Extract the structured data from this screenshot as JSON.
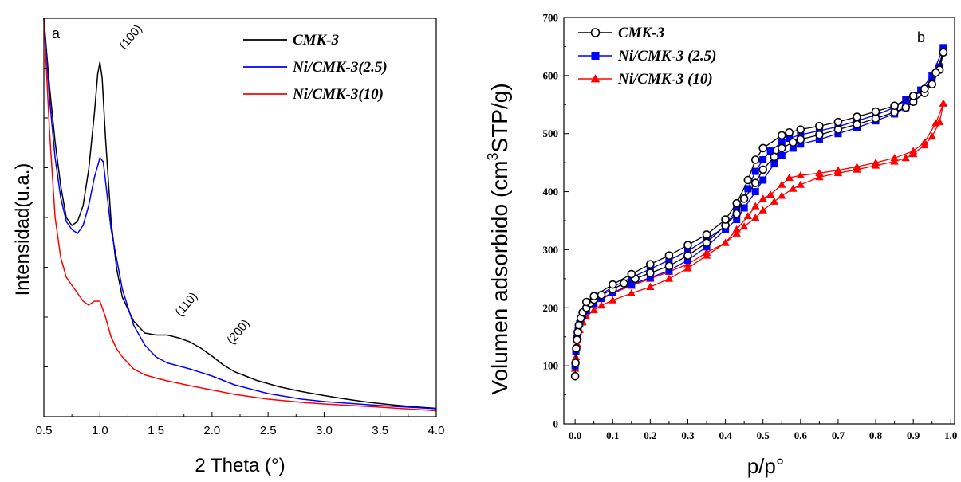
{
  "chart_data": [
    {
      "type": "line",
      "panel_label": "a",
      "xlabel": "2 Theta (°)",
      "ylabel": "Intensidad(u.a.)",
      "xlim": [
        0.5,
        4.0
      ],
      "ylim": [
        0,
        100
      ],
      "x_ticks": [
        "0.5",
        "1.0",
        "1.5",
        "2.0",
        "2.5",
        "3.0",
        "3.5",
        "4.0"
      ],
      "y_tick_labels_shown": false,
      "legend_position": "top-right",
      "annotations": [
        {
          "text": "(100)",
          "x": 1.22,
          "y": 92
        },
        {
          "text": "(110)",
          "x": 1.72,
          "y": 25
        },
        {
          "text": "(200)",
          "x": 2.18,
          "y": 18
        }
      ],
      "series": [
        {
          "name": "CMK-3",
          "color": "#000000",
          "x": [
            0.5,
            0.55,
            0.6,
            0.65,
            0.7,
            0.75,
            0.8,
            0.85,
            0.9,
            0.95,
            0.98,
            1.0,
            1.02,
            1.05,
            1.1,
            1.15,
            1.2,
            1.3,
            1.4,
            1.5,
            1.6,
            1.7,
            1.8,
            1.9,
            2.0,
            2.1,
            2.2,
            2.4,
            2.6,
            2.8,
            3.0,
            3.2,
            3.4,
            3.6,
            3.8,
            4.0
          ],
          "y": [
            100,
            83,
            69,
            58,
            50,
            48,
            49,
            53,
            62,
            76,
            86,
            89,
            85,
            70,
            49,
            37,
            30,
            24,
            21,
            20.5,
            20.5,
            19.8,
            18.8,
            17.2,
            15.2,
            13,
            11.3,
            9.1,
            7.5,
            6.3,
            5.3,
            4.4,
            3.6,
            3.0,
            2.5,
            2.1
          ]
        },
        {
          "name": "Ni/CMK-3(2.5)",
          "color": "#0000ff",
          "x": [
            0.5,
            0.55,
            0.6,
            0.65,
            0.7,
            0.75,
            0.8,
            0.85,
            0.9,
            0.95,
            1.0,
            1.03,
            1.1,
            1.2,
            1.3,
            1.4,
            1.5,
            1.6,
            1.8,
            2.0,
            2.2,
            2.5,
            2.8,
            3.0,
            3.5,
            4.0
          ],
          "y": [
            100,
            80,
            65,
            55,
            49,
            47,
            46,
            48,
            53,
            60,
            65,
            64,
            47,
            32,
            23,
            18,
            15,
            13.5,
            12,
            10.2,
            8,
            5.8,
            4.4,
            3.8,
            2.8,
            2.0
          ]
        },
        {
          "name": "Ni/CMK-3(10)",
          "color": "#ff0000",
          "x": [
            0.5,
            0.55,
            0.6,
            0.65,
            0.7,
            0.75,
            0.8,
            0.85,
            0.9,
            0.95,
            1.0,
            1.05,
            1.1,
            1.15,
            1.2,
            1.3,
            1.4,
            1.5,
            1.6,
            1.8,
            2.0,
            2.2,
            2.5,
            2.8,
            3.0,
            3.5,
            4.0
          ],
          "y": [
            100,
            72,
            50,
            40,
            35,
            33,
            31,
            29,
            28,
            29,
            29,
            25,
            20,
            17,
            15,
            12,
            10.5,
            9.7,
            9,
            7.8,
            6.7,
            5.6,
            4.4,
            3.6,
            3.2,
            2.4,
            1.5
          ]
        }
      ]
    },
    {
      "type": "scatter",
      "panel_label": "b",
      "xlabel": "p/p°",
      "ylabel": "Volumen adsorbido (cm³STP/g)",
      "ylabel_base": "Volumen adsorbido (cm",
      "ylabel_sup": "3",
      "ylabel_tail": "STP/g)",
      "xlim": [
        -0.03,
        1.01
      ],
      "ylim": [
        0,
        700
      ],
      "x_ticks": [
        "0.0",
        "0.1",
        "0.2",
        "0.3",
        "0.4",
        "0.5",
        "0.6",
        "0.7",
        "0.8",
        "0.9",
        "1.0"
      ],
      "y_ticks": [
        "0",
        "100",
        "200",
        "300",
        "400",
        "500",
        "600",
        "700"
      ],
      "legend_position": "top-left",
      "series": [
        {
          "name": "CMK-3",
          "color": "#000000",
          "marker": "open-circle",
          "adsorption": [
            [
              0.0,
              82
            ],
            [
              0.001,
              105
            ],
            [
              0.003,
              130
            ],
            [
              0.005,
              145
            ],
            [
              0.007,
              158
            ],
            [
              0.01,
              170
            ],
            [
              0.015,
              182
            ],
            [
              0.02,
              192
            ],
            [
              0.03,
              200
            ],
            [
              0.04,
              208
            ],
            [
              0.05,
              214
            ],
            [
              0.07,
              222
            ],
            [
              0.1,
              232
            ],
            [
              0.13,
              242
            ],
            [
              0.16,
              250
            ],
            [
              0.2,
              260
            ],
            [
              0.25,
              272
            ],
            [
              0.3,
              290
            ],
            [
              0.35,
              312
            ],
            [
              0.4,
              342
            ],
            [
              0.43,
              362
            ],
            [
              0.45,
              388
            ],
            [
              0.48,
              415
            ],
            [
              0.5,
              438
            ],
            [
              0.53,
              460
            ],
            [
              0.55,
              475
            ],
            [
              0.58,
              485
            ],
            [
              0.6,
              490
            ],
            [
              0.65,
              498
            ],
            [
              0.7,
              507
            ],
            [
              0.75,
              516
            ],
            [
              0.8,
              526
            ],
            [
              0.85,
              537
            ],
            [
              0.88,
              545
            ],
            [
              0.9,
              555
            ],
            [
              0.93,
              570
            ],
            [
              0.95,
              585
            ],
            [
              0.97,
              610
            ],
            [
              0.98,
              640
            ]
          ],
          "desorption": [
            [
              0.98,
              640
            ],
            [
              0.96,
              605
            ],
            [
              0.93,
              577
            ],
            [
              0.9,
              565
            ],
            [
              0.85,
              548
            ],
            [
              0.8,
              538
            ],
            [
              0.75,
              529
            ],
            [
              0.7,
              520
            ],
            [
              0.65,
              513
            ],
            [
              0.6,
              507
            ],
            [
              0.57,
              502
            ],
            [
              0.55,
              497
            ],
            [
              0.5,
              475
            ],
            [
              0.48,
              455
            ],
            [
              0.46,
              420
            ],
            [
              0.43,
              380
            ],
            [
              0.4,
              352
            ],
            [
              0.35,
              326
            ],
            [
              0.3,
              308
            ],
            [
              0.25,
              290
            ],
            [
              0.2,
              275
            ],
            [
              0.15,
              258
            ],
            [
              0.1,
              240
            ],
            [
              0.05,
              220
            ],
            [
              0.03,
              210
            ]
          ]
        },
        {
          "name": "Ni/CMK-3 (2.5)",
          "color": "#0000ff",
          "marker": "filled-square",
          "adsorption": [
            [
              0.0,
              100
            ],
            [
              0.002,
              125
            ],
            [
              0.005,
              148
            ],
            [
              0.008,
              160
            ],
            [
              0.012,
              172
            ],
            [
              0.02,
              186
            ],
            [
              0.03,
              195
            ],
            [
              0.05,
              207
            ],
            [
              0.07,
              216
            ],
            [
              0.1,
              226
            ],
            [
              0.15,
              240
            ],
            [
              0.2,
              252
            ],
            [
              0.25,
              264
            ],
            [
              0.3,
              282
            ],
            [
              0.35,
              305
            ],
            [
              0.4,
              335
            ],
            [
              0.43,
              352
            ],
            [
              0.45,
              372
            ],
            [
              0.48,
              400
            ],
            [
              0.5,
              420
            ],
            [
              0.53,
              448
            ],
            [
              0.55,
              462
            ],
            [
              0.58,
              475
            ],
            [
              0.6,
              482
            ],
            [
              0.65,
              490
            ],
            [
              0.7,
              500
            ],
            [
              0.75,
              510
            ],
            [
              0.8,
              522
            ],
            [
              0.85,
              534
            ],
            [
              0.88,
              545
            ],
            [
              0.9,
              555
            ],
            [
              0.93,
              572
            ],
            [
              0.95,
              590
            ],
            [
              0.97,
              615
            ],
            [
              0.98,
              648
            ]
          ],
          "desorption": [
            [
              0.98,
              648
            ],
            [
              0.95,
              600
            ],
            [
              0.92,
              575
            ],
            [
              0.88,
              558
            ],
            [
              0.85,
              545
            ],
            [
              0.8,
              532
            ],
            [
              0.75,
              522
            ],
            [
              0.7,
              512
            ],
            [
              0.65,
              505
            ],
            [
              0.6,
              498
            ],
            [
              0.57,
              492
            ],
            [
              0.55,
              485
            ],
            [
              0.52,
              470
            ],
            [
              0.5,
              455
            ],
            [
              0.48,
              435
            ],
            [
              0.46,
              405
            ],
            [
              0.43,
              370
            ],
            [
              0.4,
              340
            ],
            [
              0.35,
              318
            ],
            [
              0.3,
              298
            ],
            [
              0.25,
              282
            ],
            [
              0.2,
              267
            ],
            [
              0.15,
              252
            ],
            [
              0.1,
              236
            ],
            [
              0.05,
              215
            ]
          ]
        },
        {
          "name": "Ni/CMK-3 (10)",
          "color": "#ff0000",
          "marker": "filled-triangle",
          "adsorption": [
            [
              0.0,
              95
            ],
            [
              0.002,
              115
            ],
            [
              0.005,
              138
            ],
            [
              0.008,
              150
            ],
            [
              0.012,
              162
            ],
            [
              0.02,
              175
            ],
            [
              0.03,
              185
            ],
            [
              0.05,
              196
            ],
            [
              0.07,
              204
            ],
            [
              0.1,
              213
            ],
            [
              0.15,
              225
            ],
            [
              0.2,
              236
            ],
            [
              0.25,
              250
            ],
            [
              0.3,
              268
            ],
            [
              0.35,
              290
            ],
            [
              0.4,
              312
            ],
            [
              0.43,
              328
            ],
            [
              0.45,
              340
            ],
            [
              0.48,
              355
            ],
            [
              0.5,
              368
            ],
            [
              0.53,
              383
            ],
            [
              0.55,
              393
            ],
            [
              0.58,
              405
            ],
            [
              0.6,
              412
            ],
            [
              0.65,
              425
            ],
            [
              0.7,
              432
            ],
            [
              0.75,
              438
            ],
            [
              0.8,
              445
            ],
            [
              0.85,
              452
            ],
            [
              0.88,
              458
            ],
            [
              0.9,
              465
            ],
            [
              0.93,
              480
            ],
            [
              0.95,
              495
            ],
            [
              0.97,
              520
            ],
            [
              0.98,
              552
            ]
          ],
          "desorption": [
            [
              0.98,
              552
            ],
            [
              0.96,
              518
            ],
            [
              0.93,
              485
            ],
            [
              0.9,
              470
            ],
            [
              0.85,
              458
            ],
            [
              0.8,
              450
            ],
            [
              0.75,
              443
            ],
            [
              0.7,
              437
            ],
            [
              0.65,
              432
            ],
            [
              0.6,
              428
            ],
            [
              0.57,
              424
            ],
            [
              0.55,
              412
            ],
            [
              0.52,
              395
            ],
            [
              0.5,
              388
            ],
            [
              0.48,
              375
            ],
            [
              0.46,
              358
            ],
            [
              0.43,
              335
            ],
            [
              0.4,
              312
            ],
            [
              0.35,
              295
            ],
            [
              0.3,
              275
            ],
            [
              0.25,
              262
            ],
            [
              0.2,
              250
            ],
            [
              0.15,
              238
            ],
            [
              0.1,
              225
            ],
            [
              0.05,
              208
            ]
          ]
        }
      ]
    }
  ]
}
